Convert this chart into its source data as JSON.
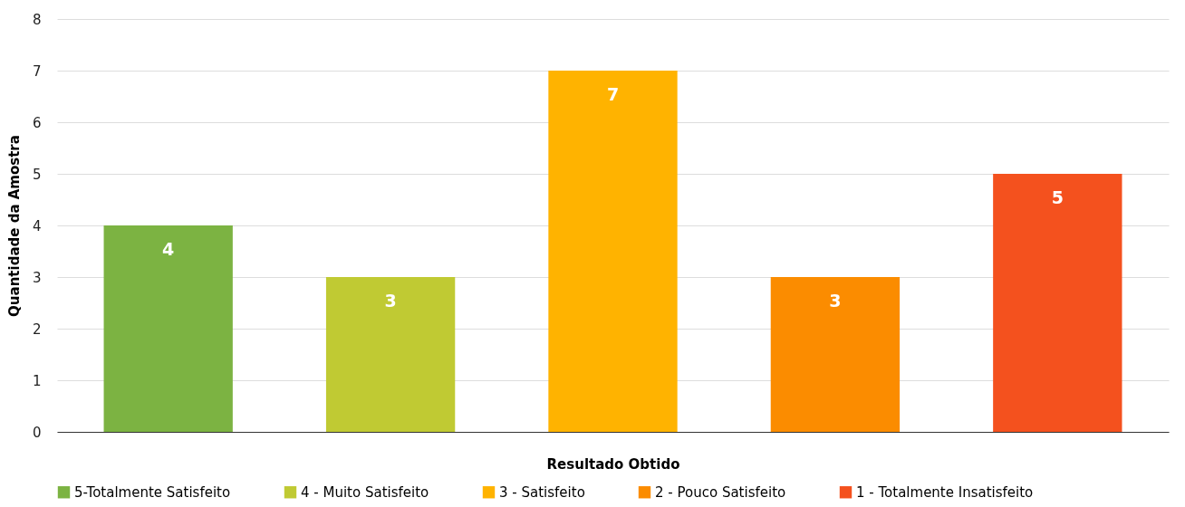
{
  "chart_data": {
    "type": "bar",
    "xlabel": "Resultado Obtido",
    "ylabel": "Quantidade da Amostra",
    "categories": [
      null
    ],
    "series": [
      {
        "name": "5-Totalmente Satisfeito",
        "color": "#7cb342",
        "values": [
          4
        ]
      },
      {
        "name": "4 - Muito Satisfeito",
        "color": "#c0ca33",
        "values": [
          3
        ]
      },
      {
        "name": "3 - Satisfeito",
        "color": "#ffb300",
        "values": [
          7
        ]
      },
      {
        "name": "2 - Pouco Satisfeito",
        "color": "#fb8c00",
        "values": [
          3
        ]
      },
      {
        "name": "1 - Totalmente Insatisfeito",
        "color": "#f4511e",
        "values": [
          5
        ]
      }
    ],
    "ylim": [
      0,
      8
    ],
    "yticks": [
      0,
      1,
      2,
      3,
      4,
      5,
      6,
      7,
      8
    ],
    "grid": "y",
    "legend": "bottom",
    "tick_labels": "y",
    "data_labels": true
  }
}
